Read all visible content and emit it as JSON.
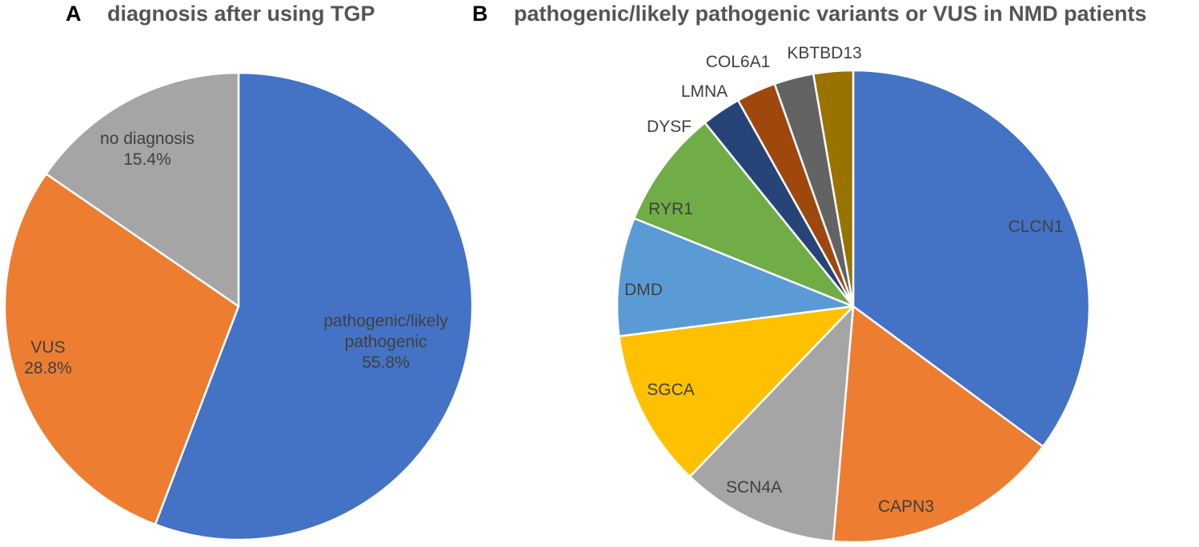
{
  "chart_data": [
    {
      "type": "pie",
      "panel_letter": "A",
      "title": "diagnosis after using TGP",
      "start_angle_deg": 0,
      "direction": "clockwise",
      "slices": [
        {
          "label_lines": [
            "pathogenic/likely",
            "pathogenic"
          ],
          "value": 55.8,
          "display_value": "55.8%",
          "color": "#4472C4"
        },
        {
          "label_lines": [
            "VUS"
          ],
          "value": 28.8,
          "display_value": "28.8%",
          "color": "#ED7D31"
        },
        {
          "label_lines": [
            "no diagnosis"
          ],
          "value": 15.4,
          "display_value": "15.4%",
          "color": "#A5A5A5"
        }
      ]
    },
    {
      "type": "pie",
      "panel_letter": "B",
      "title": "pathogenic/likely pathogenic variants or VUS in NMD patients",
      "start_angle_deg": 0,
      "direction": "clockwise",
      "slices": [
        {
          "label": "CLCN1",
          "value": 13,
          "color": "#4472C4"
        },
        {
          "label": "CAPN3",
          "value": 6,
          "color": "#ED7D31"
        },
        {
          "label": "SCN4A",
          "value": 4,
          "color": "#A5A5A5"
        },
        {
          "label": "SGCA",
          "value": 4,
          "color": "#FFC000"
        },
        {
          "label": "DMD",
          "value": 3,
          "color": "#5B9BD5"
        },
        {
          "label": "RYR1",
          "value": 3,
          "color": "#70AD47"
        },
        {
          "label": "DYSF",
          "value": 1,
          "color": "#264478"
        },
        {
          "label": "LMNA",
          "value": 1,
          "color": "#9E480E"
        },
        {
          "label": "COL6A1",
          "value": 1,
          "color": "#636363"
        },
        {
          "label": "KBTBD13",
          "value": 1,
          "color": "#997300"
        }
      ]
    }
  ]
}
